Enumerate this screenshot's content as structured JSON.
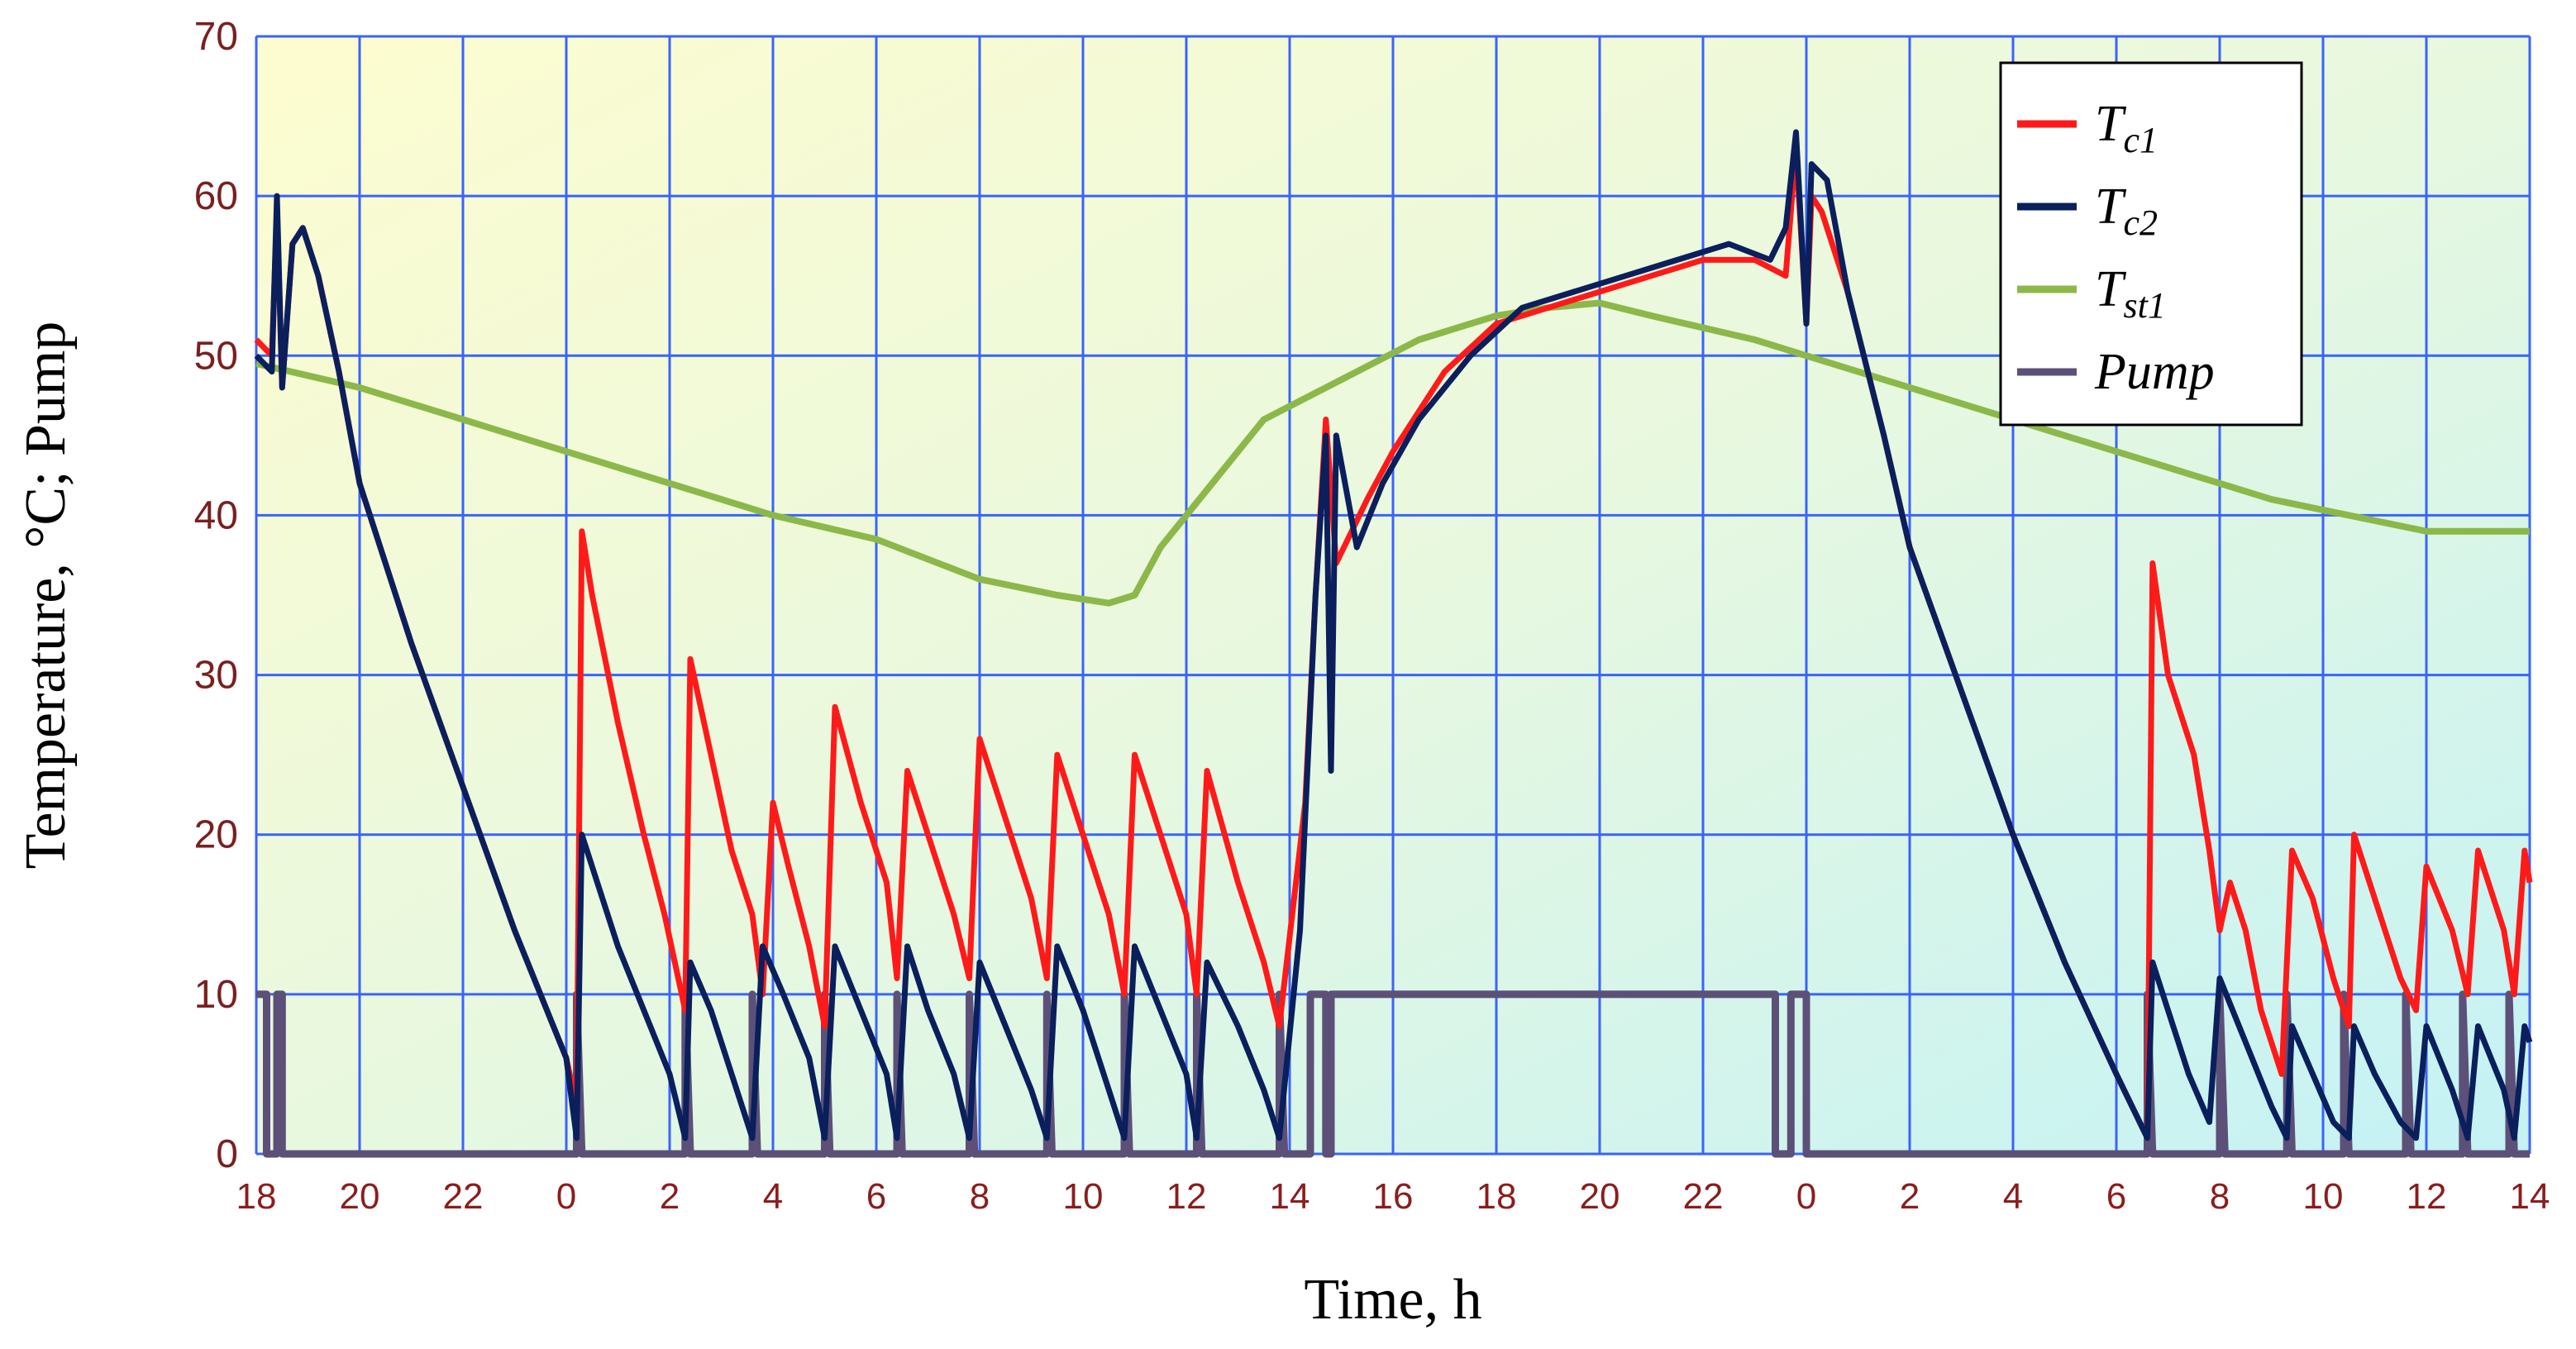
{
  "chart_data": {
    "type": "line",
    "xlabel": "Time, h",
    "ylabel": "Temperature, °C;  Pump",
    "ylim": [
      0,
      70
    ],
    "yticks": [
      "0",
      "10",
      "20",
      "30",
      "40",
      "50",
      "60",
      "70"
    ],
    "xlim": [
      0,
      44
    ],
    "xtick_positions": [
      0,
      2,
      4,
      6,
      8,
      10,
      12,
      14,
      16,
      18,
      20,
      22,
      24,
      26,
      28,
      30,
      32,
      34,
      36,
      38,
      40,
      42,
      44
    ],
    "xtick_labels": [
      "18",
      "20",
      "22",
      "0",
      "2",
      "4",
      "6",
      "8",
      "10",
      "12",
      "14",
      "16",
      "18",
      "20",
      "22",
      "0",
      "2",
      "4",
      "6",
      "8",
      "10",
      "12",
      "14"
    ],
    "grid": true,
    "legend_position": "top-right",
    "legend": [
      {
        "main": "T",
        "sub": "c1"
      },
      {
        "main": "T",
        "sub": "c2"
      },
      {
        "main": "T",
        "sub": "st1"
      },
      {
        "main": "Pump",
        "sub": ""
      }
    ],
    "series": [
      {
        "name": "Tc1",
        "color": "#ff1a1a",
        "points": [
          [
            0,
            51
          ],
          [
            0.3,
            50
          ],
          [
            0.4,
            59
          ],
          [
            0.5,
            48
          ],
          [
            0.7,
            57
          ],
          [
            0.9,
            58
          ],
          [
            1.2,
            55
          ],
          [
            1.6,
            49
          ],
          [
            2,
            42
          ],
          [
            3,
            32
          ],
          [
            4,
            23
          ],
          [
            5,
            14
          ],
          [
            6,
            6
          ],
          [
            6.2,
            3
          ],
          [
            6.3,
            39
          ],
          [
            6.5,
            35
          ],
          [
            7,
            27
          ],
          [
            7.5,
            20
          ],
          [
            7.9,
            15
          ],
          [
            8.3,
            9
          ],
          [
            8.4,
            31
          ],
          [
            8.8,
            25
          ],
          [
            9.2,
            19
          ],
          [
            9.6,
            15
          ],
          [
            9.8,
            10
          ],
          [
            10,
            22
          ],
          [
            10.3,
            18
          ],
          [
            10.7,
            13
          ],
          [
            11,
            8
          ],
          [
            11.2,
            28
          ],
          [
            11.7,
            22
          ],
          [
            12.2,
            17
          ],
          [
            12.4,
            11
          ],
          [
            12.6,
            24
          ],
          [
            13,
            20
          ],
          [
            13.5,
            15
          ],
          [
            13.8,
            11
          ],
          [
            14,
            26
          ],
          [
            14.5,
            21
          ],
          [
            15,
            16
          ],
          [
            15.3,
            11
          ],
          [
            15.5,
            25
          ],
          [
            16,
            20
          ],
          [
            16.5,
            15
          ],
          [
            16.8,
            10
          ],
          [
            17,
            25
          ],
          [
            17.5,
            20
          ],
          [
            18,
            15
          ],
          [
            18.2,
            10
          ],
          [
            18.4,
            24
          ],
          [
            19,
            17
          ],
          [
            19.5,
            12
          ],
          [
            19.8,
            8
          ],
          [
            20.3,
            22
          ],
          [
            20.5,
            35
          ],
          [
            20.7,
            46
          ],
          [
            20.9,
            37
          ],
          [
            21.5,
            41
          ],
          [
            22,
            44
          ],
          [
            23,
            49
          ],
          [
            24,
            52
          ],
          [
            25,
            53
          ],
          [
            26,
            54
          ],
          [
            27,
            55
          ],
          [
            28,
            56
          ],
          [
            29,
            56
          ],
          [
            29.6,
            55
          ],
          [
            29.8,
            63
          ],
          [
            30,
            52
          ],
          [
            30.1,
            60
          ],
          [
            30.3,
            59
          ],
          [
            30.8,
            54
          ],
          [
            31.5,
            45
          ],
          [
            32,
            38
          ],
          [
            33,
            29
          ],
          [
            34,
            20
          ],
          [
            35,
            12
          ],
          [
            36,
            5
          ],
          [
            36.6,
            1
          ],
          [
            36.7,
            37
          ],
          [
            37,
            30
          ],
          [
            37.5,
            25
          ],
          [
            37.8,
            19
          ],
          [
            38,
            14
          ],
          [
            38.2,
            17
          ],
          [
            38.5,
            14
          ],
          [
            38.8,
            9
          ],
          [
            39.2,
            5
          ],
          [
            39.4,
            19
          ],
          [
            39.8,
            16
          ],
          [
            40.2,
            11
          ],
          [
            40.5,
            8
          ],
          [
            40.6,
            20
          ],
          [
            41,
            16
          ],
          [
            41.5,
            11
          ],
          [
            41.8,
            9
          ],
          [
            42,
            18
          ],
          [
            42.5,
            14
          ],
          [
            42.8,
            10
          ],
          [
            43,
            19
          ],
          [
            43.5,
            14
          ],
          [
            43.7,
            10
          ],
          [
            43.9,
            19
          ],
          [
            44,
            17
          ]
        ]
      },
      {
        "name": "Tc2",
        "color": "#0a1f5c",
        "points": [
          [
            0,
            50
          ],
          [
            0.3,
            49
          ],
          [
            0.4,
            60
          ],
          [
            0.5,
            48
          ],
          [
            0.7,
            57
          ],
          [
            0.9,
            58
          ],
          [
            1.2,
            55
          ],
          [
            1.6,
            49
          ],
          [
            2,
            42
          ],
          [
            3,
            32
          ],
          [
            4,
            23
          ],
          [
            5,
            14
          ],
          [
            6,
            6
          ],
          [
            6.2,
            1
          ],
          [
            6.3,
            20
          ],
          [
            6.6,
            17
          ],
          [
            7,
            13
          ],
          [
            7.5,
            9
          ],
          [
            8,
            5
          ],
          [
            8.3,
            1
          ],
          [
            8.4,
            12
          ],
          [
            8.8,
            9
          ],
          [
            9.2,
            5
          ],
          [
            9.6,
            1
          ],
          [
            9.8,
            13
          ],
          [
            10.2,
            10
          ],
          [
            10.7,
            6
          ],
          [
            11,
            1
          ],
          [
            11.2,
            13
          ],
          [
            11.7,
            9
          ],
          [
            12.2,
            5
          ],
          [
            12.4,
            1
          ],
          [
            12.6,
            13
          ],
          [
            13,
            9
          ],
          [
            13.5,
            5
          ],
          [
            13.8,
            1
          ],
          [
            14,
            12
          ],
          [
            14.5,
            8
          ],
          [
            15,
            4
          ],
          [
            15.3,
            1
          ],
          [
            15.5,
            13
          ],
          [
            16,
            9
          ],
          [
            16.5,
            4
          ],
          [
            16.8,
            1
          ],
          [
            17,
            13
          ],
          [
            17.5,
            9
          ],
          [
            18,
            5
          ],
          [
            18.2,
            1
          ],
          [
            18.4,
            12
          ],
          [
            19,
            8
          ],
          [
            19.5,
            4
          ],
          [
            19.8,
            1
          ],
          [
            20.2,
            14
          ],
          [
            20.5,
            35
          ],
          [
            20.7,
            45
          ],
          [
            20.8,
            24
          ],
          [
            20.9,
            45
          ],
          [
            21.3,
            38
          ],
          [
            21.8,
            42
          ],
          [
            22.5,
            46
          ],
          [
            23.5,
            50
          ],
          [
            24.5,
            53
          ],
          [
            25.5,
            54
          ],
          [
            26.5,
            55
          ],
          [
            27.5,
            56
          ],
          [
            28.5,
            57
          ],
          [
            29.3,
            56
          ],
          [
            29.6,
            58
          ],
          [
            29.8,
            64
          ],
          [
            30,
            52
          ],
          [
            30.1,
            62
          ],
          [
            30.4,
            61
          ],
          [
            30.8,
            54
          ],
          [
            31.5,
            45
          ],
          [
            32,
            38
          ],
          [
            33,
            29
          ],
          [
            34,
            20
          ],
          [
            35,
            12
          ],
          [
            36,
            5
          ],
          [
            36.6,
            1
          ],
          [
            36.7,
            12
          ],
          [
            37,
            9
          ],
          [
            37.4,
            5
          ],
          [
            37.8,
            2
          ],
          [
            38,
            11
          ],
          [
            38.5,
            7
          ],
          [
            39,
            3
          ],
          [
            39.3,
            1
          ],
          [
            39.4,
            8
          ],
          [
            39.8,
            5
          ],
          [
            40.2,
            2
          ],
          [
            40.5,
            1
          ],
          [
            40.6,
            8
          ],
          [
            41,
            5
          ],
          [
            41.5,
            2
          ],
          [
            41.8,
            1
          ],
          [
            42,
            8
          ],
          [
            42.5,
            4
          ],
          [
            42.8,
            1
          ],
          [
            43,
            8
          ],
          [
            43.5,
            4
          ],
          [
            43.7,
            1
          ],
          [
            43.9,
            8
          ],
          [
            44,
            7
          ]
        ]
      },
      {
        "name": "Tst1",
        "color": "#8cb84a",
        "points": [
          [
            0,
            49.5
          ],
          [
            2,
            48
          ],
          [
            4,
            46
          ],
          [
            5,
            45
          ],
          [
            7,
            43
          ],
          [
            9,
            41
          ],
          [
            10,
            40
          ],
          [
            12,
            38.5
          ],
          [
            14,
            36
          ],
          [
            15.5,
            35
          ],
          [
            16.5,
            34.5
          ],
          [
            17,
            35
          ],
          [
            17.5,
            38
          ],
          [
            18.5,
            42
          ],
          [
            19.5,
            46
          ],
          [
            21,
            48.5
          ],
          [
            22.5,
            51
          ],
          [
            24,
            52.5
          ],
          [
            25,
            53
          ],
          [
            26,
            53.3
          ],
          [
            27,
            52.5
          ],
          [
            29,
            51
          ],
          [
            31,
            49
          ],
          [
            33,
            47
          ],
          [
            35,
            45
          ],
          [
            37,
            43
          ],
          [
            39,
            41
          ],
          [
            40.5,
            40
          ],
          [
            42,
            39
          ],
          [
            43,
            39
          ],
          [
            44,
            39
          ]
        ]
      },
      {
        "name": "Pump",
        "color": "#5c5078",
        "points": [
          [
            0,
            10
          ],
          [
            0.2,
            10
          ],
          [
            0.2,
            0
          ],
          [
            0.4,
            0
          ],
          [
            0.4,
            10
          ],
          [
            0.5,
            10
          ],
          [
            0.5,
            0
          ],
          [
            6.2,
            0
          ],
          [
            6.2,
            10
          ],
          [
            6.3,
            0
          ],
          [
            8.3,
            0
          ],
          [
            8.3,
            10
          ],
          [
            8.4,
            0
          ],
          [
            9.6,
            0
          ],
          [
            9.6,
            10
          ],
          [
            9.7,
            0
          ],
          [
            11,
            0
          ],
          [
            11,
            10
          ],
          [
            11.1,
            0
          ],
          [
            12.4,
            0
          ],
          [
            12.4,
            10
          ],
          [
            12.5,
            0
          ],
          [
            13.8,
            0
          ],
          [
            13.8,
            10
          ],
          [
            13.9,
            0
          ],
          [
            15.3,
            0
          ],
          [
            15.3,
            10
          ],
          [
            15.4,
            0
          ],
          [
            16.8,
            0
          ],
          [
            16.8,
            10
          ],
          [
            16.9,
            0
          ],
          [
            18.2,
            0
          ],
          [
            18.2,
            10
          ],
          [
            18.3,
            0
          ],
          [
            19.8,
            0
          ],
          [
            19.8,
            10
          ],
          [
            19.9,
            0
          ],
          [
            20.4,
            0
          ],
          [
            20.4,
            10
          ],
          [
            20.7,
            10
          ],
          [
            20.7,
            0
          ],
          [
            20.8,
            0
          ],
          [
            20.8,
            10
          ],
          [
            29.4,
            10
          ],
          [
            29.4,
            0
          ],
          [
            29.7,
            0
          ],
          [
            29.7,
            10
          ],
          [
            30.0,
            10
          ],
          [
            30.0,
            0
          ],
          [
            36.6,
            0
          ],
          [
            36.6,
            10
          ],
          [
            36.7,
            0
          ],
          [
            38.0,
            0
          ],
          [
            38.0,
            10
          ],
          [
            38.1,
            0
          ],
          [
            39.3,
            0
          ],
          [
            39.3,
            10
          ],
          [
            39.4,
            0
          ],
          [
            40.4,
            0
          ],
          [
            40.4,
            10
          ],
          [
            40.5,
            0
          ],
          [
            41.6,
            0
          ],
          [
            41.6,
            10
          ],
          [
            41.7,
            0
          ],
          [
            42.7,
            0
          ],
          [
            42.7,
            10
          ],
          [
            42.8,
            0
          ],
          [
            43.6,
            0
          ],
          [
            43.6,
            10
          ],
          [
            43.7,
            0
          ],
          [
            44,
            0
          ]
        ]
      }
    ]
  }
}
